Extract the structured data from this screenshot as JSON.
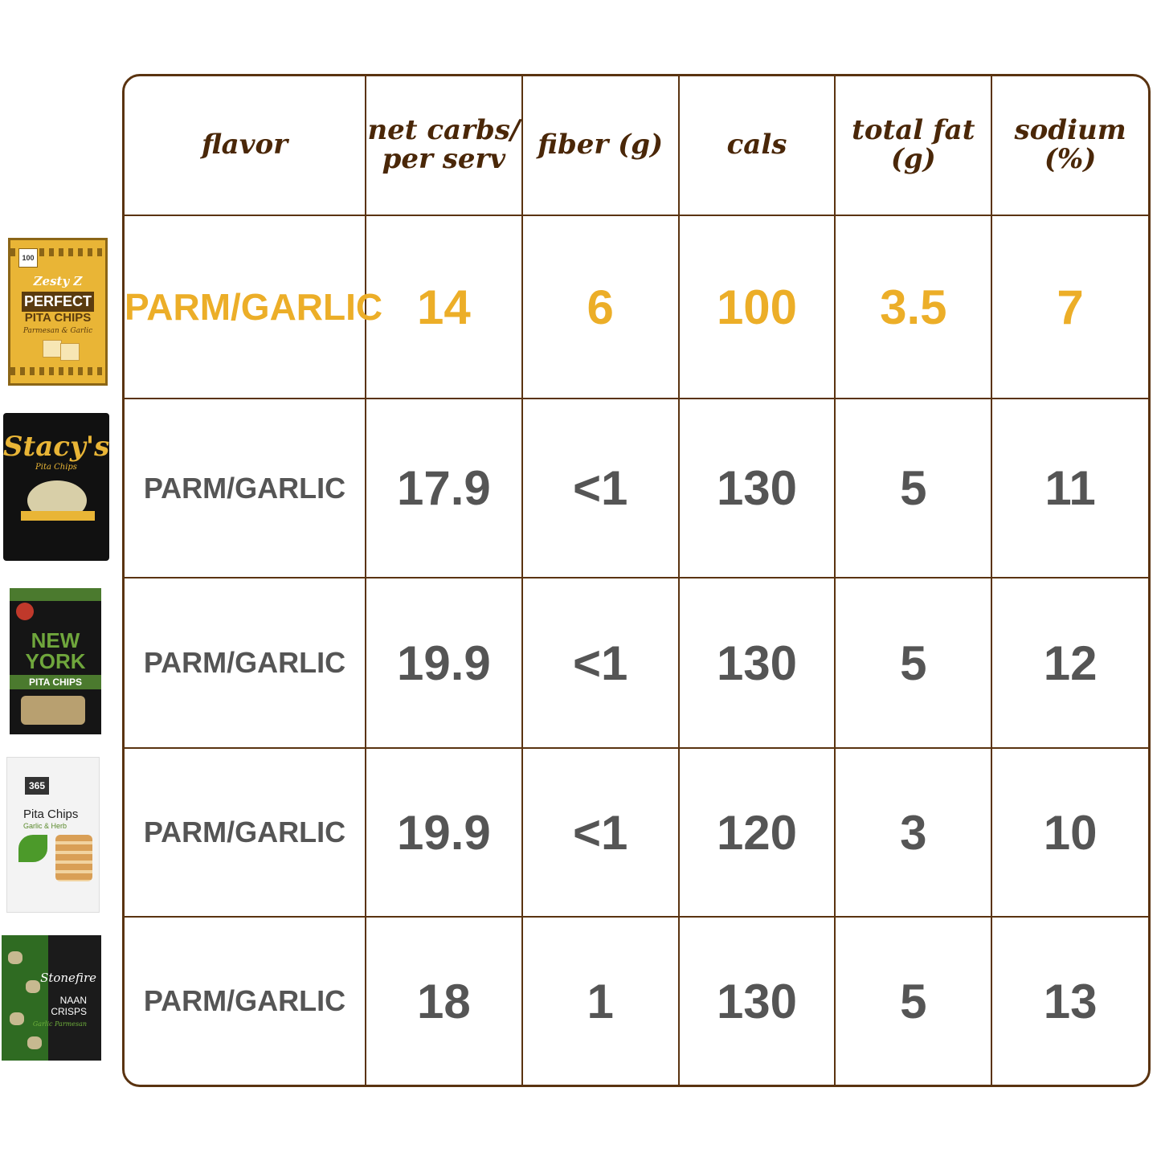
{
  "chart_data": {
    "type": "table",
    "columns": [
      "flavor",
      "net carbs/ per serv",
      "fiber (g)",
      "cals",
      "total fat (g)",
      "sodium (%)"
    ],
    "rows": [
      {
        "flavor": "PARM/GARLIC",
        "net_carbs": "14",
        "fiber": "6",
        "cals": "100",
        "total_fat": "3.5",
        "sodium": "7",
        "highlight": true
      },
      {
        "flavor": "PARM/GARLIC",
        "net_carbs": "17.9",
        "fiber": "<1",
        "cals": "130",
        "total_fat": "5",
        "sodium": "11"
      },
      {
        "flavor": "PARM/GARLIC",
        "net_carbs": "19.9",
        "fiber": "<1",
        "cals": "130",
        "total_fat": "5",
        "sodium": "12"
      },
      {
        "flavor": "PARM/GARLIC",
        "net_carbs": "19.9",
        "fiber": "<1",
        "cals": "120",
        "total_fat": "3",
        "sodium": "10"
      },
      {
        "flavor": "PARM/GARLIC",
        "net_carbs": "18",
        "fiber": "1",
        "cals": "130",
        "total_fat": "5",
        "sodium": "13"
      }
    ]
  },
  "products": [
    {
      "icon": "zesty-z-pita-chips-bag",
      "lines": [
        "Zesty Z",
        "PERFECT",
        "PITA CHIPS",
        "Parmesan & Garlic"
      ],
      "badge": "100"
    },
    {
      "icon": "stacys-pita-chips-bag",
      "lines": [
        "Stacy's",
        "Pita Chips"
      ]
    },
    {
      "icon": "new-york-style-pita-chips-bag",
      "lines": [
        "NEW",
        "YORK",
        "PITA CHIPS"
      ]
    },
    {
      "icon": "365-pita-chips-bag",
      "lines": [
        "365",
        "Pita Chips",
        "Garlic & Herb"
      ]
    },
    {
      "icon": "stonefire-naan-crisps-bag",
      "lines": [
        "Stonefire",
        "NAAN",
        "CRISPS",
        "Garlic Parmesan"
      ]
    }
  ],
  "colors": {
    "border": "#5a3310",
    "header_text": "#4a2708",
    "highlight": "#ecae28",
    "body_text": "#555555"
  }
}
